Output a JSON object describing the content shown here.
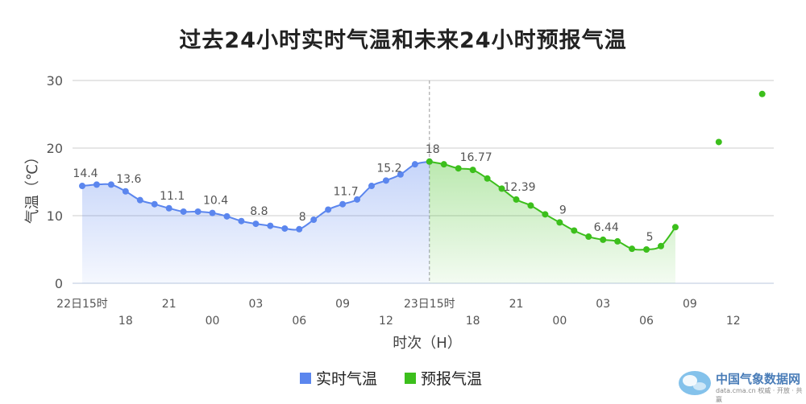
{
  "title": "过去24小时实时气温和未来24小时预报气温",
  "colors": {
    "observed": "#5b86ee",
    "forecast": "#3cbf1c",
    "grid": "#cccccc",
    "axis_text": "#555555"
  },
  "legend": {
    "observed_label": "实时气温",
    "forecast_label": "预报气温"
  },
  "watermark": {
    "site_name": "中国气象数据网",
    "url_text": "data.cma.cn 权威 · 开放 · 共赢"
  },
  "chart_data": {
    "type": "line",
    "ylabel": "气温（℃）",
    "xlabel": "时次（H）",
    "ylim": [
      0,
      30
    ],
    "yticks": [
      "0",
      "10",
      "20",
      "30"
    ],
    "grid": true,
    "legend_position": "bottom",
    "x_tick_labels_top": [
      "22日15时",
      "21",
      "03",
      "09",
      "23日15时",
      "21",
      "03",
      "09"
    ],
    "x_tick_labels_bottom": [
      "18",
      "00",
      "06",
      "12",
      "18",
      "00",
      "06",
      "12"
    ],
    "series": [
      {
        "name": "实时气温",
        "values": [
          14.4,
          14.6,
          14.6,
          13.6,
          12.3,
          11.7,
          11.1,
          10.6,
          10.6,
          10.4,
          9.9,
          9.2,
          8.8,
          8.5,
          8.1,
          8.0,
          9.4,
          10.9,
          11.7,
          12.4,
          14.4,
          15.2,
          16.1,
          17.6,
          18.0
        ],
        "labels": {
          "0": "14.4",
          "3": "13.6",
          "6": "11.1",
          "9": "10.4",
          "12": "8.8",
          "15": "8",
          "18": "11.7",
          "21": "15.2",
          "24": "18"
        }
      },
      {
        "name": "预报气温",
        "start_index": 24,
        "values": [
          18.0,
          17.6,
          17.0,
          16.77,
          15.5,
          14.0,
          12.39,
          11.5,
          10.2,
          9.0,
          7.8,
          6.9,
          6.44,
          6.2,
          5.1,
          5.0,
          5.5,
          8.3
        ],
        "labels": {
          "3": "16.77",
          "6": "12.39",
          "9": "9",
          "12": "6.44",
          "15": "5"
        },
        "extra_points": [
          {
            "index": 44,
            "value": 20.9
          },
          {
            "index": 47,
            "value": 28.0
          }
        ]
      }
    ]
  }
}
